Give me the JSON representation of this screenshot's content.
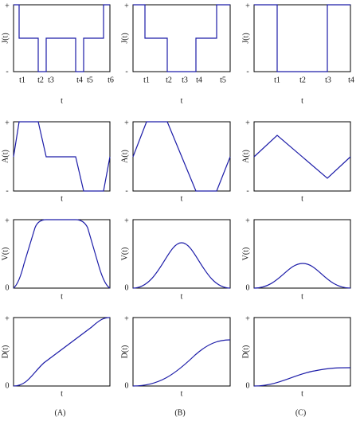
{
  "columns": [
    {
      "label": "(A)",
      "plots": [
        {
          "y_label": "J(t)",
          "y_top": "+",
          "y_bottom": "-",
          "x_label": "t",
          "x_ticks": [
            "t1",
            "t2",
            "t3",
            "t4",
            "t5",
            "t6"
          ]
        },
        {
          "y_label": "A(t)",
          "y_top": "+",
          "y_bottom": "-",
          "x_label": "t"
        },
        {
          "y_label": "V(t)",
          "y_top": "+",
          "y_bottom": "0",
          "x_label": "t"
        },
        {
          "y_label": "D(t)",
          "y_top": "+",
          "y_bottom": "0",
          "x_label": "t"
        }
      ]
    },
    {
      "label": "(B)",
      "plots": [
        {
          "y_label": "J(t)",
          "y_top": "+",
          "y_bottom": "-",
          "x_label": "t",
          "x_ticks": [
            "t1",
            "t2",
            "t3",
            "t4",
            "t5"
          ]
        },
        {
          "y_label": "A(t)",
          "y_top": "+",
          "y_bottom": "-",
          "x_label": "t"
        },
        {
          "y_label": "V(t)",
          "y_top": "+",
          "y_bottom": "0",
          "x_label": "t"
        },
        {
          "y_label": "D(t)",
          "y_top": "+",
          "y_bottom": "0",
          "x_label": "t"
        }
      ]
    },
    {
      "label": "(C)",
      "plots": [
        {
          "y_label": "J(t)",
          "y_top": "+",
          "y_bottom": "-",
          "x_label": "t",
          "x_ticks": [
            "t1",
            "t2",
            "t3",
            "t4"
          ]
        },
        {
          "y_label": "A(t)",
          "y_top": "+",
          "y_bottom": "-",
          "x_label": "t"
        },
        {
          "y_label": "V(t)",
          "y_top": "+",
          "y_bottom": "0",
          "x_label": "t"
        },
        {
          "y_label": "D(t)",
          "y_top": "+",
          "y_bottom": "0",
          "x_label": "t"
        }
      ]
    }
  ]
}
